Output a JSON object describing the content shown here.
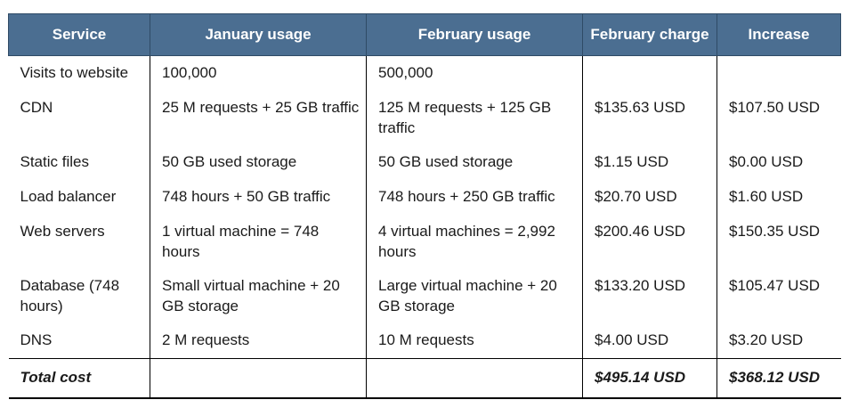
{
  "table": {
    "headers": [
      "Service",
      "January usage",
      "February usage",
      "February charge",
      "Increase"
    ],
    "rows": [
      [
        "Visits to website",
        "100,000",
        "500,000",
        "",
        ""
      ],
      [
        "CDN",
        "25 M requests + 25 GB traffic",
        "125 M requests + 125 GB traffic",
        "$135.63 USD",
        "$107.50 USD"
      ],
      [
        "Static files",
        "50 GB used storage",
        "50 GB used storage",
        "$1.15 USD",
        "$0.00 USD"
      ],
      [
        "Load balancer",
        "748 hours + 50 GB traffic",
        "748 hours + 250 GB traffic",
        "$20.70 USD",
        "$1.60 USD"
      ],
      [
        "Web servers",
        "1 virtual machine = 748 hours",
        "4 virtual machines = 2,992 hours",
        "$200.46 USD",
        "$150.35 USD"
      ],
      [
        "Database (748 hours)",
        "Small virtual machine + 20 GB storage",
        "Large virtual machine + 20 GB storage",
        "$133.20 USD",
        "$105.47 USD"
      ],
      [
        "DNS",
        "2 M requests",
        "10 M requests",
        "$4.00 USD",
        "$3.20 USD"
      ]
    ],
    "total": [
      "Total cost",
      "",
      "",
      "$495.14 USD",
      "$368.12 USD"
    ]
  }
}
